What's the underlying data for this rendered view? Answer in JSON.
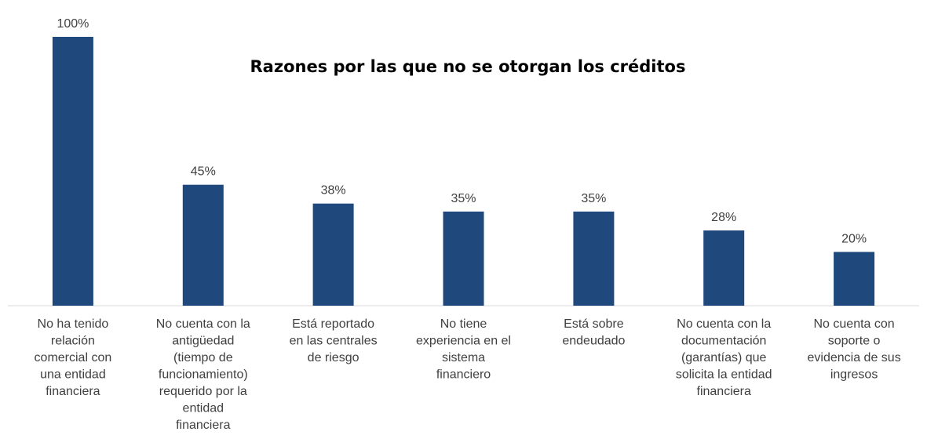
{
  "chart_data": {
    "type": "bar",
    "title": "Razones por las que no se otorgan los créditos",
    "categories": [
      [
        "No ha tenido",
        "relación",
        "comercial con",
        "una entidad",
        "financiera"
      ],
      [
        "No cuenta con la",
        "antigüedad",
        "(tiempo de",
        "funcionamiento)",
        "requerido por la",
        "entidad",
        "financiera"
      ],
      [
        "Está reportado",
        "en las centrales",
        "de riesgo"
      ],
      [
        "No tiene",
        "experiencia en el",
        "sistema",
        "financiero"
      ],
      [
        "Está sobre",
        "endeudado"
      ],
      [
        "No cuenta con la",
        "documentación",
        "(garantías) que",
        "solicita la entidad",
        "financiera"
      ],
      [
        "No cuenta con",
        "soporte o",
        "evidencia de sus",
        "ingresos"
      ]
    ],
    "values": [
      100,
      45,
      38,
      35,
      35,
      28,
      20
    ],
    "data_labels": [
      "100%",
      "45%",
      "38%",
      "35%",
      "35%",
      "28%",
      "20%"
    ],
    "xlabel": "",
    "ylabel": "",
    "ylim": [
      0,
      100
    ],
    "grid": false,
    "legend": "none",
    "bar_color": "#1F497D",
    "axis_color": "#D9D9D9",
    "text_color": "#404040"
  }
}
